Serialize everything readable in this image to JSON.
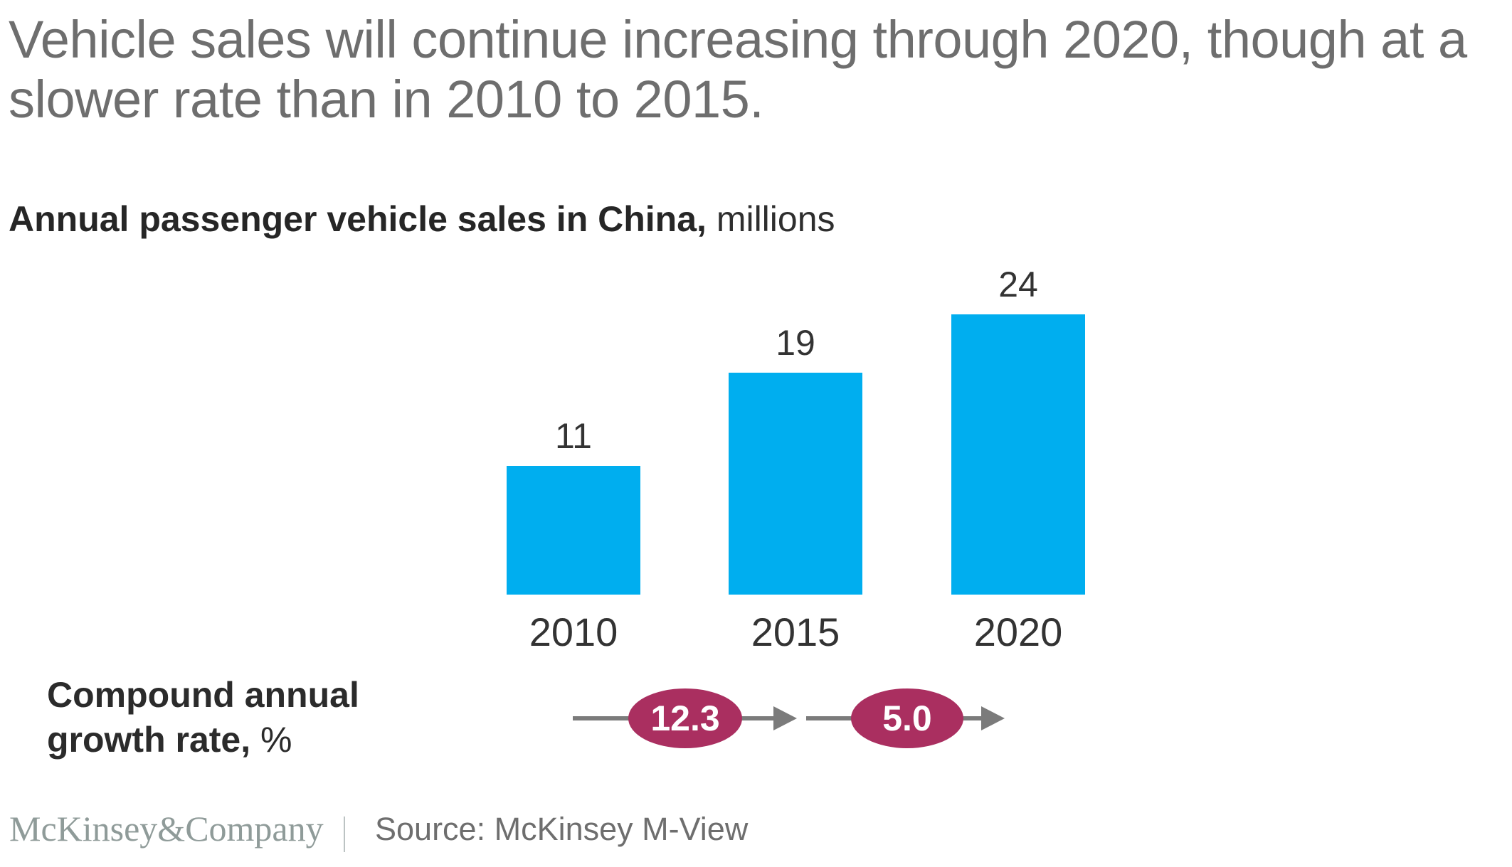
{
  "title": "Vehicle sales will continue increasing through 2020, though at a slower rate than in 2010 to 2015.",
  "subtitle": {
    "bold": "Annual passenger vehicle sales in China,",
    "unit": " millions"
  },
  "chart_data": {
    "type": "bar",
    "categories": [
      "2010",
      "2015",
      "2020"
    ],
    "values": [
      11,
      19,
      24
    ],
    "title": "Annual passenger vehicle sales in China",
    "ylabel": "millions",
    "ylim": [
      0,
      24
    ],
    "grid": false,
    "bar_color": "#00AEEF",
    "cagr": {
      "label_bold": "Compound annual growth rate,",
      "label_regular": " %",
      "segments": [
        {
          "from": "2010",
          "to": "2015",
          "value": "12.3"
        },
        {
          "from": "2015",
          "to": "2020",
          "value": "5.0"
        }
      ]
    }
  },
  "footer": {
    "logo": "McKinsey&Company",
    "source": "Source: McKinsey M-View"
  },
  "colors": {
    "bar": "#00AEEF",
    "oval": "#AA2F60",
    "arrow": "#7b7b7b",
    "title_text": "#6e6e6e"
  }
}
